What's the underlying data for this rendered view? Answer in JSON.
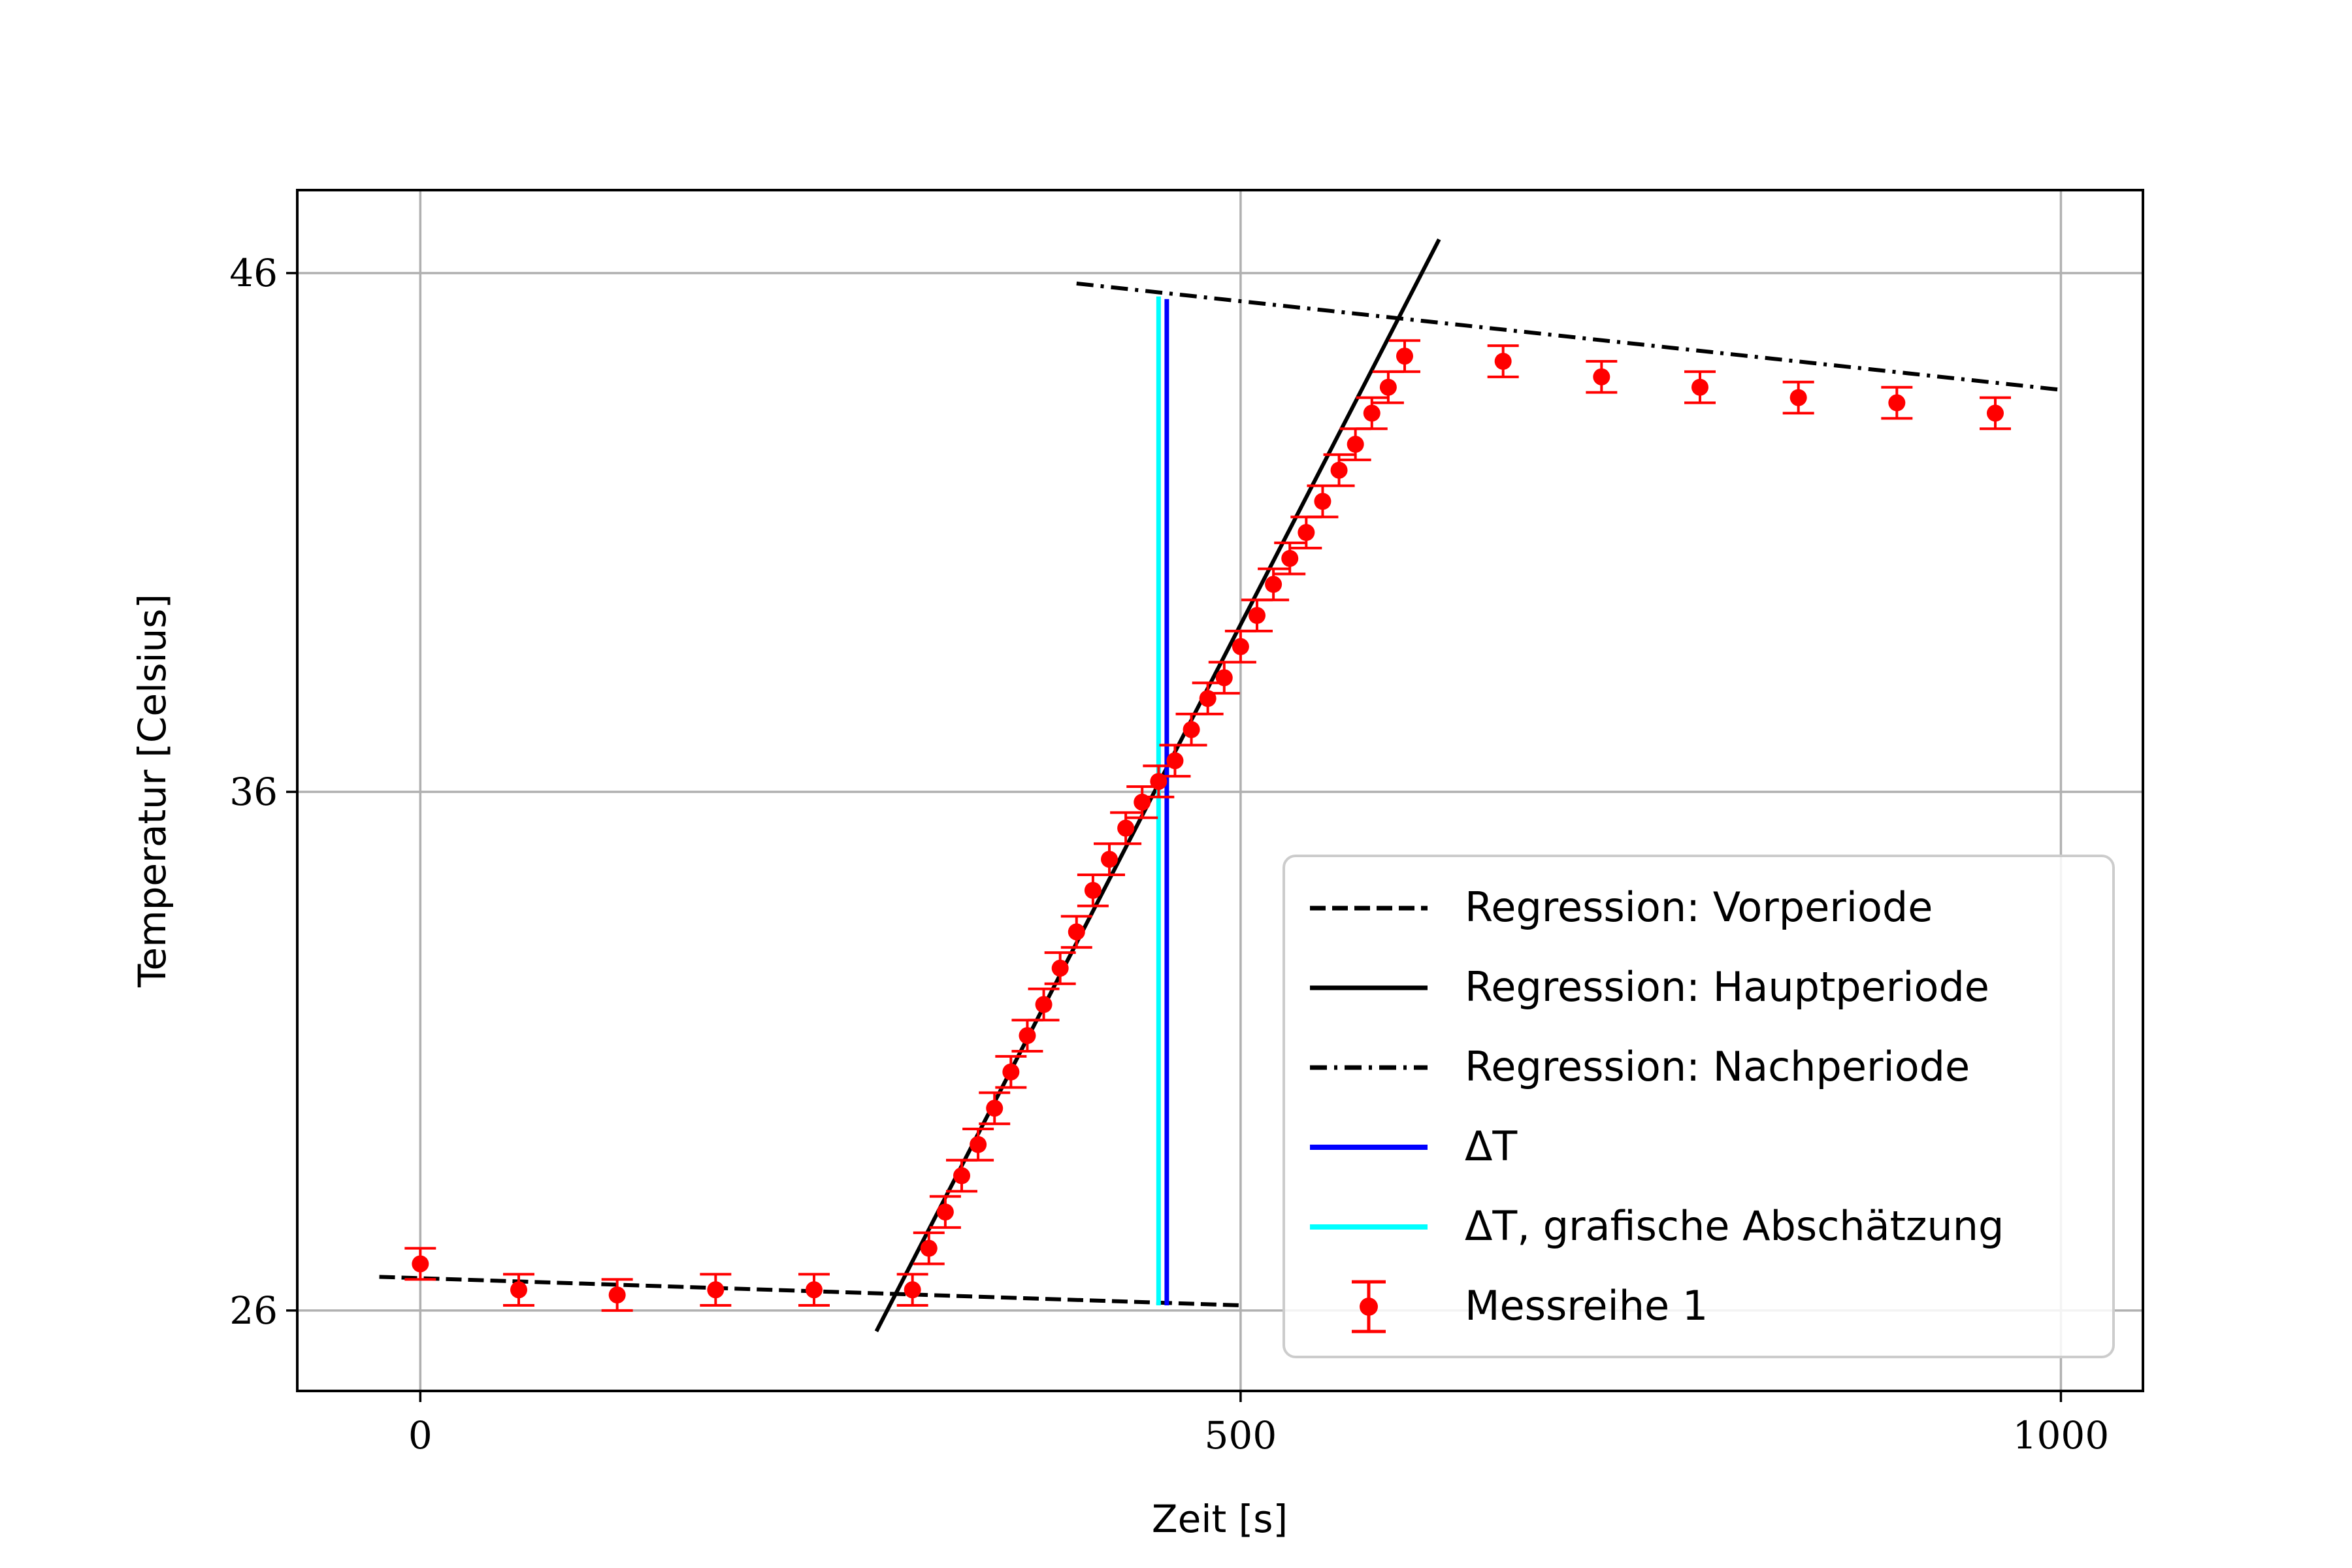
{
  "chart_data": {
    "type": "scatter",
    "title": "",
    "xlabel": "Zeit [s]",
    "ylabel": "Temperatur [Celsius]",
    "xlim": [
      -75,
      1050
    ],
    "ylim": [
      24.45,
      47.6
    ],
    "x_ticks": [
      0,
      500,
      1000
    ],
    "x_tick_labels": [
      "0",
      "500",
      "1000"
    ],
    "y_ticks": [
      26,
      36,
      46
    ],
    "y_tick_labels": [
      "26",
      "36",
      "46"
    ],
    "grid": true,
    "legend_position": "lower-right",
    "colors": {
      "measurements": "#ff0000",
      "regression": "#000000",
      "delta_t": "#0000ff",
      "delta_t_graphical": "#00ffff",
      "grid": "#b0b0b0"
    },
    "series": [
      {
        "name": "Regression: Vorperiode",
        "kind": "line",
        "style": "dashed",
        "x": [
          -25,
          500
        ],
        "y": [
          26.65,
          26.1
        ]
      },
      {
        "name": "Regression: Hauptperiode",
        "kind": "line",
        "style": "solid",
        "x": [
          278,
          621
        ],
        "y": [
          25.6,
          46.65
        ]
      },
      {
        "name": "Regression: Nachperiode",
        "kind": "line",
        "style": "dashdot",
        "x": [
          400,
          1000
        ],
        "y": [
          45.8,
          43.75
        ]
      },
      {
        "name": "ΔT",
        "kind": "vline",
        "x": 455,
        "y": [
          26.1,
          45.5
        ]
      },
      {
        "name": "ΔT, grafische Abschätzung",
        "kind": "vline",
        "x": 450,
        "y": [
          26.1,
          45.55
        ]
      },
      {
        "name": "Messreihe 1",
        "kind": "errorbar",
        "yerr": 0.3,
        "x": [
          0,
          60,
          120,
          180,
          240,
          300,
          310,
          320,
          330,
          340,
          350,
          360,
          370,
          380,
          390,
          400,
          410,
          420,
          430,
          440,
          450,
          460,
          470,
          480,
          490,
          500,
          510,
          520,
          530,
          540,
          550,
          560,
          570,
          580,
          590,
          600,
          660,
          720,
          780,
          840,
          900,
          960
        ],
        "y": [
          26.9,
          26.4,
          26.3,
          26.4,
          26.4,
          26.4,
          27.2,
          27.9,
          28.6,
          29.2,
          29.9,
          30.6,
          31.3,
          31.9,
          32.6,
          33.3,
          34.1,
          34.7,
          35.3,
          35.8,
          36.2,
          36.6,
          37.2,
          37.8,
          38.2,
          38.8,
          39.4,
          40.0,
          40.5,
          41.0,
          41.6,
          42.2,
          42.7,
          43.3,
          43.8,
          44.4,
          44.3,
          44.0,
          43.8,
          43.6,
          43.5,
          43.3
        ]
      }
    ]
  }
}
